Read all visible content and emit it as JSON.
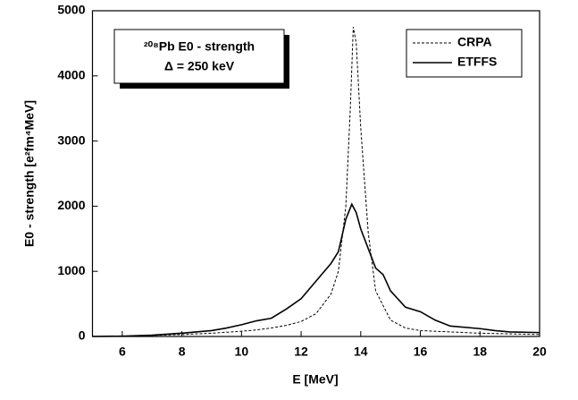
{
  "chart_data": {
    "type": "line",
    "xlabel": "E [MeV]",
    "ylabel": "E0 - strength [e²fm⁴MeV]",
    "annotation": [
      "²⁰⁸Pb E0 - strength",
      "Δ = 250 keV"
    ],
    "xlim": [
      5,
      20
    ],
    "xticks": [
      6,
      8,
      10,
      12,
      14,
      16,
      18,
      20
    ],
    "ylim": [
      0,
      5000
    ],
    "yticks": [
      0,
      1000,
      2000,
      3000,
      4000,
      5000
    ],
    "legend": "upper right",
    "series": [
      {
        "name": "CRPA",
        "color": "#000000",
        "dash": true,
        "x": [
          5,
          6,
          7,
          8,
          9,
          10,
          10.5,
          11,
          11.5,
          12,
          12.5,
          13,
          13.25,
          13.5,
          13.65,
          13.75,
          13.85,
          14,
          14.25,
          14.5,
          15,
          15.5,
          16,
          17,
          18,
          19,
          20
        ],
        "values": [
          0,
          5,
          15,
          30,
          50,
          80,
          100,
          130,
          170,
          230,
          350,
          650,
          1000,
          2000,
          3500,
          4750,
          4500,
          3200,
          1600,
          700,
          250,
          130,
          90,
          70,
          50,
          40,
          30
        ]
      },
      {
        "name": "ETFFS",
        "color": "#000000",
        "dash": false,
        "x": [
          5,
          6,
          7,
          8,
          9,
          9.5,
          10,
          10.5,
          11,
          11.5,
          12,
          12.5,
          13,
          13.25,
          13.5,
          13.7,
          13.85,
          14,
          14.25,
          14.5,
          14.75,
          15,
          15.5,
          16,
          16.5,
          17,
          18,
          18.5,
          19,
          20
        ],
        "values": [
          0,
          5,
          20,
          50,
          90,
          130,
          180,
          240,
          280,
          420,
          580,
          850,
          1120,
          1300,
          1800,
          2030,
          1900,
          1650,
          1350,
          1050,
          950,
          700,
          450,
          380,
          250,
          160,
          120,
          90,
          70,
          60
        ]
      }
    ]
  }
}
